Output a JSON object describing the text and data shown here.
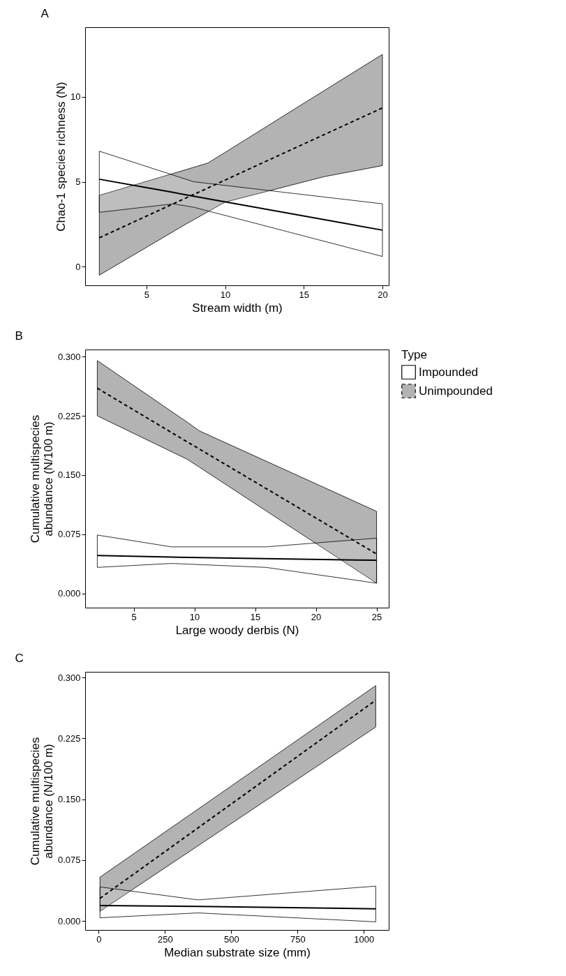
{
  "chart_data": [
    {
      "type": "line",
      "title": "A",
      "xlabel": "Stream width (m)",
      "ylabel": "Chao-1 species richness (N)",
      "xlim": [
        1.1,
        20.4
      ],
      "xticks": [
        5,
        10,
        15,
        20
      ],
      "ylim": [
        -1.1,
        14.1
      ],
      "yticks": [
        0,
        5,
        10
      ],
      "grid": false,
      "legend": false,
      "series": [
        {
          "color": "#000000",
          "line_style": "dashed",
          "x": [
            2,
            7.5,
            8.9,
            10,
            16.3,
            20
          ],
          "values": [
            1.7,
            4.04,
            4.63,
            5.1,
            7.78,
            9.35
          ],
          "lower": [
            -0.5,
            2.5,
            3.23,
            3.8,
            5.3,
            5.95
          ],
          "upper": [
            4.2,
            5.71,
            6.1,
            6.73,
            10.37,
            12.5
          ]
        },
        {
          "color": "#000000",
          "line_style": "solid",
          "x": [
            2,
            6.7,
            8,
            20
          ],
          "values": [
            5.15,
            4.37,
            4.15,
            2.15
          ],
          "lower": [
            3.2,
            3.7,
            3.5,
            0.6
          ],
          "upper": [
            6.8,
            5.39,
            5.0,
            3.7
          ]
        }
      ]
    },
    {
      "type": "line",
      "title": "B",
      "xlabel": "Large woody derbis (N)",
      "ylabel": "Cumulative multispecies\nabundance (N/100 m)",
      "xlim": [
        1,
        26
      ],
      "xticks": [
        5,
        10,
        15,
        20,
        25
      ],
      "ylim": [
        -0.018,
        0.309
      ],
      "yticks": [
        {
          "value": 0,
          "label": "0.000"
        },
        0.075,
        {
          "value": 0.15,
          "label": "0.150"
        },
        0.225,
        {
          "value": 0.3,
          "label": "0.300"
        }
      ],
      "grid": false,
      "legend": "right",
      "legend_title": "Type",
      "series": [
        {
          "name": "Impounded",
          "color": "#000000",
          "line_style": "solid",
          "x": [
            2,
            8.1,
            15.9,
            25
          ],
          "values": [
            0.048,
            0.046,
            0.044,
            0.042
          ],
          "lower": [
            0.033,
            0.038,
            0.033,
            0.013
          ],
          "upper": [
            0.074,
            0.059,
            0.059,
            0.07
          ]
        },
        {
          "name": "Unimpounded",
          "color": "#000000",
          "line_style": "dashed",
          "x": [
            2,
            9.4,
            10.4,
            25
          ],
          "values": [
            0.26,
            0.192,
            0.183,
            0.05
          ],
          "lower": [
            0.225,
            0.17,
            0.16,
            0.013
          ],
          "upper": [
            0.295,
            0.217,
            0.206,
            0.104
          ]
        }
      ]
    },
    {
      "type": "line",
      "title": "C",
      "xlabel": "Median substrate size (mm)",
      "ylabel": "Cumulative multispecies\nabundance (N/100 m)",
      "xlim": [
        -51,
        1094
      ],
      "xticks": [
        0,
        250,
        500,
        750,
        {
          "value": 1000,
          "label": "1000"
        }
      ],
      "ylim": [
        -0.011,
        0.307
      ],
      "yticks": [
        {
          "value": 0,
          "label": "0.000"
        },
        0.075,
        {
          "value": 0.15,
          "label": "0.150"
        },
        0.225,
        {
          "value": 0.3,
          "label": "0.300"
        }
      ],
      "grid": false,
      "legend": false,
      "series": [
        {
          "color": "#000000",
          "line_style": "dashed",
          "x": [
            5,
            1045
          ],
          "values": [
            0.028,
            0.272
          ],
          "lower": [
            0.012,
            0.239
          ],
          "upper": [
            0.054,
            0.29
          ]
        },
        {
          "color": "#000000",
          "line_style": "solid",
          "x": [
            5,
            375,
            1045
          ],
          "values": [
            0.019,
            0.018,
            0.015
          ],
          "lower": [
            0.004,
            0.01,
            -0.001
          ],
          "upper": [
            0.042,
            0.026,
            0.043
          ]
        }
      ]
    }
  ]
}
